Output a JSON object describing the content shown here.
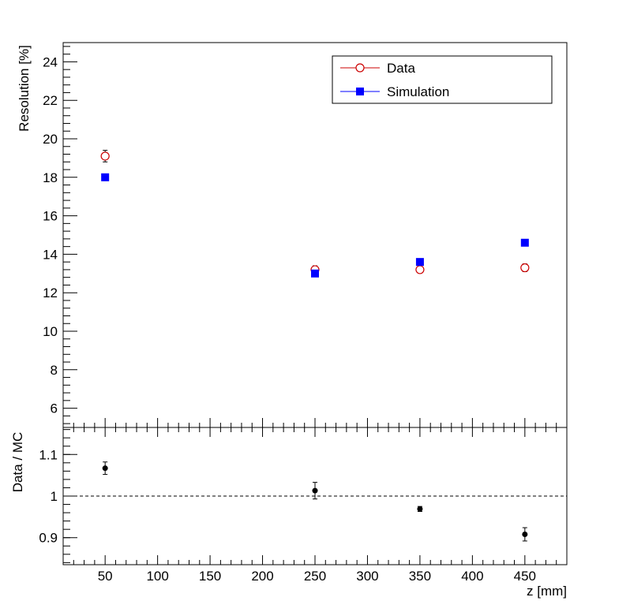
{
  "chart_data": [
    {
      "type": "scatter",
      "ylabel": "Resolution [%]",
      "xlim": [
        10,
        490
      ],
      "ylim": [
        5,
        25
      ],
      "y_ticks": [
        6,
        8,
        10,
        12,
        14,
        16,
        18,
        20,
        22,
        24
      ],
      "legend": {
        "placement": "top-right"
      },
      "series": [
        {
          "name": "Data",
          "marker": "open-circle",
          "color": "#cc0000",
          "x": [
            50,
            250,
            350,
            450
          ],
          "y": [
            19.1,
            13.2,
            13.2,
            13.3
          ],
          "yerr": [
            0.3,
            0.2,
            0.1,
            0.2
          ]
        },
        {
          "name": "Simulation",
          "marker": "filled-square",
          "color": "#0000ff",
          "x": [
            50,
            250,
            350,
            450
          ],
          "y": [
            18.0,
            13.0,
            13.6,
            14.6
          ],
          "yerr": [
            0.05,
            0.05,
            0.05,
            0.05
          ]
        }
      ]
    },
    {
      "type": "scatter",
      "ylabel": "Data / MC",
      "xlabel": "z [mm]",
      "xlim": [
        10,
        490
      ],
      "ylim": [
        0.835,
        1.165
      ],
      "x_ticks": [
        50,
        100,
        150,
        200,
        250,
        300,
        350,
        400,
        450
      ],
      "y_ticks": [
        0.9,
        1,
        1.1
      ],
      "reference_line": 1,
      "series": [
        {
          "marker": "filled-circle",
          "color": "#000000",
          "x": [
            50,
            250,
            350,
            450
          ],
          "y": [
            1.067,
            1.013,
            0.969,
            0.908
          ],
          "yerr": [
            0.015,
            0.02,
            0.006,
            0.016
          ]
        }
      ]
    }
  ]
}
